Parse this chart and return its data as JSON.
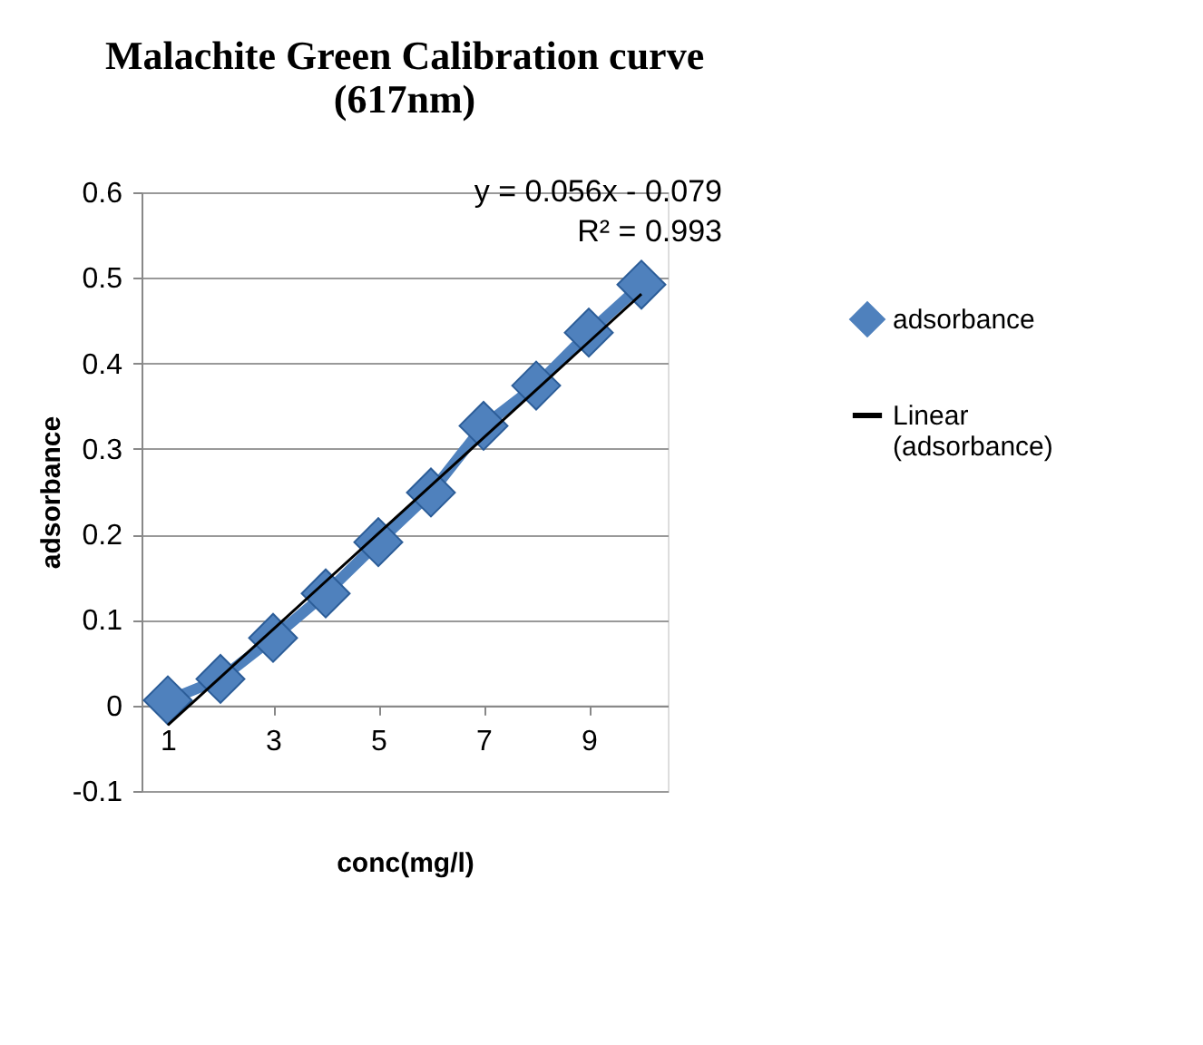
{
  "chart_data": {
    "type": "line",
    "title": "Malachite Green Calibration curve (617nm)",
    "xlabel": "conc(mg/l)",
    "ylabel": "adsorbance",
    "categories": [
      "1",
      null,
      "3",
      null,
      "5",
      null,
      "7",
      null,
      "9",
      null
    ],
    "series": [
      {
        "name": "adsorbance",
        "color": "#4f81bd",
        "marker": "diamond",
        "values": [
          0.006,
          0.031,
          0.079,
          0.131,
          0.191,
          0.249,
          0.327,
          0.374,
          0.436,
          0.492
        ]
      },
      {
        "name": "Linear (adsorbance)",
        "color": "#000000",
        "marker": "none",
        "values": [
          -0.023,
          0.033,
          0.089,
          0.145,
          0.201,
          0.257,
          0.313,
          0.369,
          0.425,
          0.481
        ]
      }
    ],
    "ylim": [
      -0.1,
      0.6
    ],
    "yticks": [
      -0.1,
      0,
      0.1,
      0.2,
      0.3,
      0.4,
      0.5,
      0.6
    ],
    "grid": "y",
    "legend": "right",
    "annotations": [
      "y = 0.056x - 0.079",
      "R² = 0.993"
    ]
  }
}
